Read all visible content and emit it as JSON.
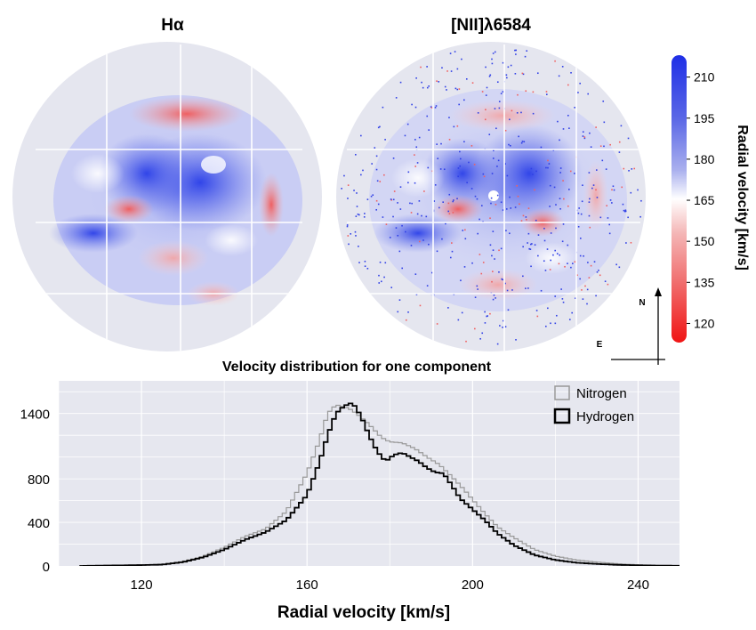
{
  "maps": {
    "left_title": "Hα",
    "right_title": "[NII]λ6584",
    "background_color": "#e5e6ef"
  },
  "colorbar": {
    "label": "Radial velocity [km/s]",
    "ticks": [
      "210",
      "195",
      "180",
      "165",
      "150",
      "135",
      "120"
    ],
    "tick_values": [
      210,
      195,
      180,
      165,
      150,
      135,
      120
    ],
    "range": [
      113,
      218
    ],
    "colors": {
      "high": "#2030e8",
      "mid": "#ffffff",
      "low": "#f01818"
    }
  },
  "compass": {
    "north": "N",
    "east": "E"
  },
  "chart_data": {
    "type": "line",
    "title": "Velocity distribution for one component",
    "xlabel": "Radial velocity [km/s]",
    "ylabel": "",
    "xlim": [
      100,
      250
    ],
    "ylim": [
      0,
      1700
    ],
    "xticks": [
      120,
      160,
      200,
      240
    ],
    "xtick_labels": [
      "120",
      "160",
      "200",
      "240"
    ],
    "yticks": [
      0,
      400,
      800,
      1400
    ],
    "ytick_labels": [
      "0",
      "400",
      "800",
      "1400"
    ],
    "grid": true,
    "legend_position": "top-right",
    "background": "#e6e7ef",
    "series": [
      {
        "name": "Nitrogen",
        "color": "#999999",
        "points": [
          [
            105,
            0
          ],
          [
            110,
            3
          ],
          [
            115,
            5
          ],
          [
            120,
            8
          ],
          [
            125,
            15
          ],
          [
            130,
            40
          ],
          [
            135,
            90
          ],
          [
            140,
            170
          ],
          [
            145,
            270
          ],
          [
            150,
            340
          ],
          [
            155,
            500
          ],
          [
            160,
            850
          ],
          [
            163,
            1150
          ],
          [
            165,
            1400
          ],
          [
            167,
            1480
          ],
          [
            170,
            1450
          ],
          [
            172,
            1400
          ],
          [
            175,
            1300
          ],
          [
            178,
            1180
          ],
          [
            180,
            1140
          ],
          [
            183,
            1130
          ],
          [
            186,
            1080
          ],
          [
            189,
            1000
          ],
          [
            192,
            930
          ],
          [
            195,
            820
          ],
          [
            198,
            700
          ],
          [
            200,
            610
          ],
          [
            203,
            480
          ],
          [
            206,
            360
          ],
          [
            210,
            260
          ],
          [
            215,
            150
          ],
          [
            220,
            90
          ],
          [
            225,
            55
          ],
          [
            230,
            35
          ],
          [
            235,
            20
          ],
          [
            240,
            10
          ],
          [
            245,
            5
          ],
          [
            250,
            3
          ]
        ]
      },
      {
        "name": "Hydrogen",
        "color": "#000000",
        "points": [
          [
            105,
            0
          ],
          [
            110,
            3
          ],
          [
            115,
            5
          ],
          [
            120,
            8
          ],
          [
            125,
            12
          ],
          [
            130,
            35
          ],
          [
            135,
            80
          ],
          [
            140,
            150
          ],
          [
            145,
            240
          ],
          [
            150,
            310
          ],
          [
            155,
            420
          ],
          [
            160,
            650
          ],
          [
            163,
            950
          ],
          [
            165,
            1200
          ],
          [
            167,
            1400
          ],
          [
            169,
            1470
          ],
          [
            171,
            1500
          ],
          [
            173,
            1380
          ],
          [
            175,
            1200
          ],
          [
            177,
            1050
          ],
          [
            179,
            960
          ],
          [
            181,
            1020
          ],
          [
            183,
            1040
          ],
          [
            185,
            1000
          ],
          [
            187,
            960
          ],
          [
            189,
            900
          ],
          [
            191,
            860
          ],
          [
            193,
            850
          ],
          [
            195,
            740
          ],
          [
            197,
            620
          ],
          [
            200,
            520
          ],
          [
            203,
            420
          ],
          [
            206,
            300
          ],
          [
            210,
            190
          ],
          [
            215,
            100
          ],
          [
            220,
            55
          ],
          [
            225,
            30
          ],
          [
            230,
            18
          ],
          [
            235,
            10
          ],
          [
            240,
            6
          ],
          [
            245,
            3
          ],
          [
            250,
            2
          ]
        ]
      }
    ]
  }
}
